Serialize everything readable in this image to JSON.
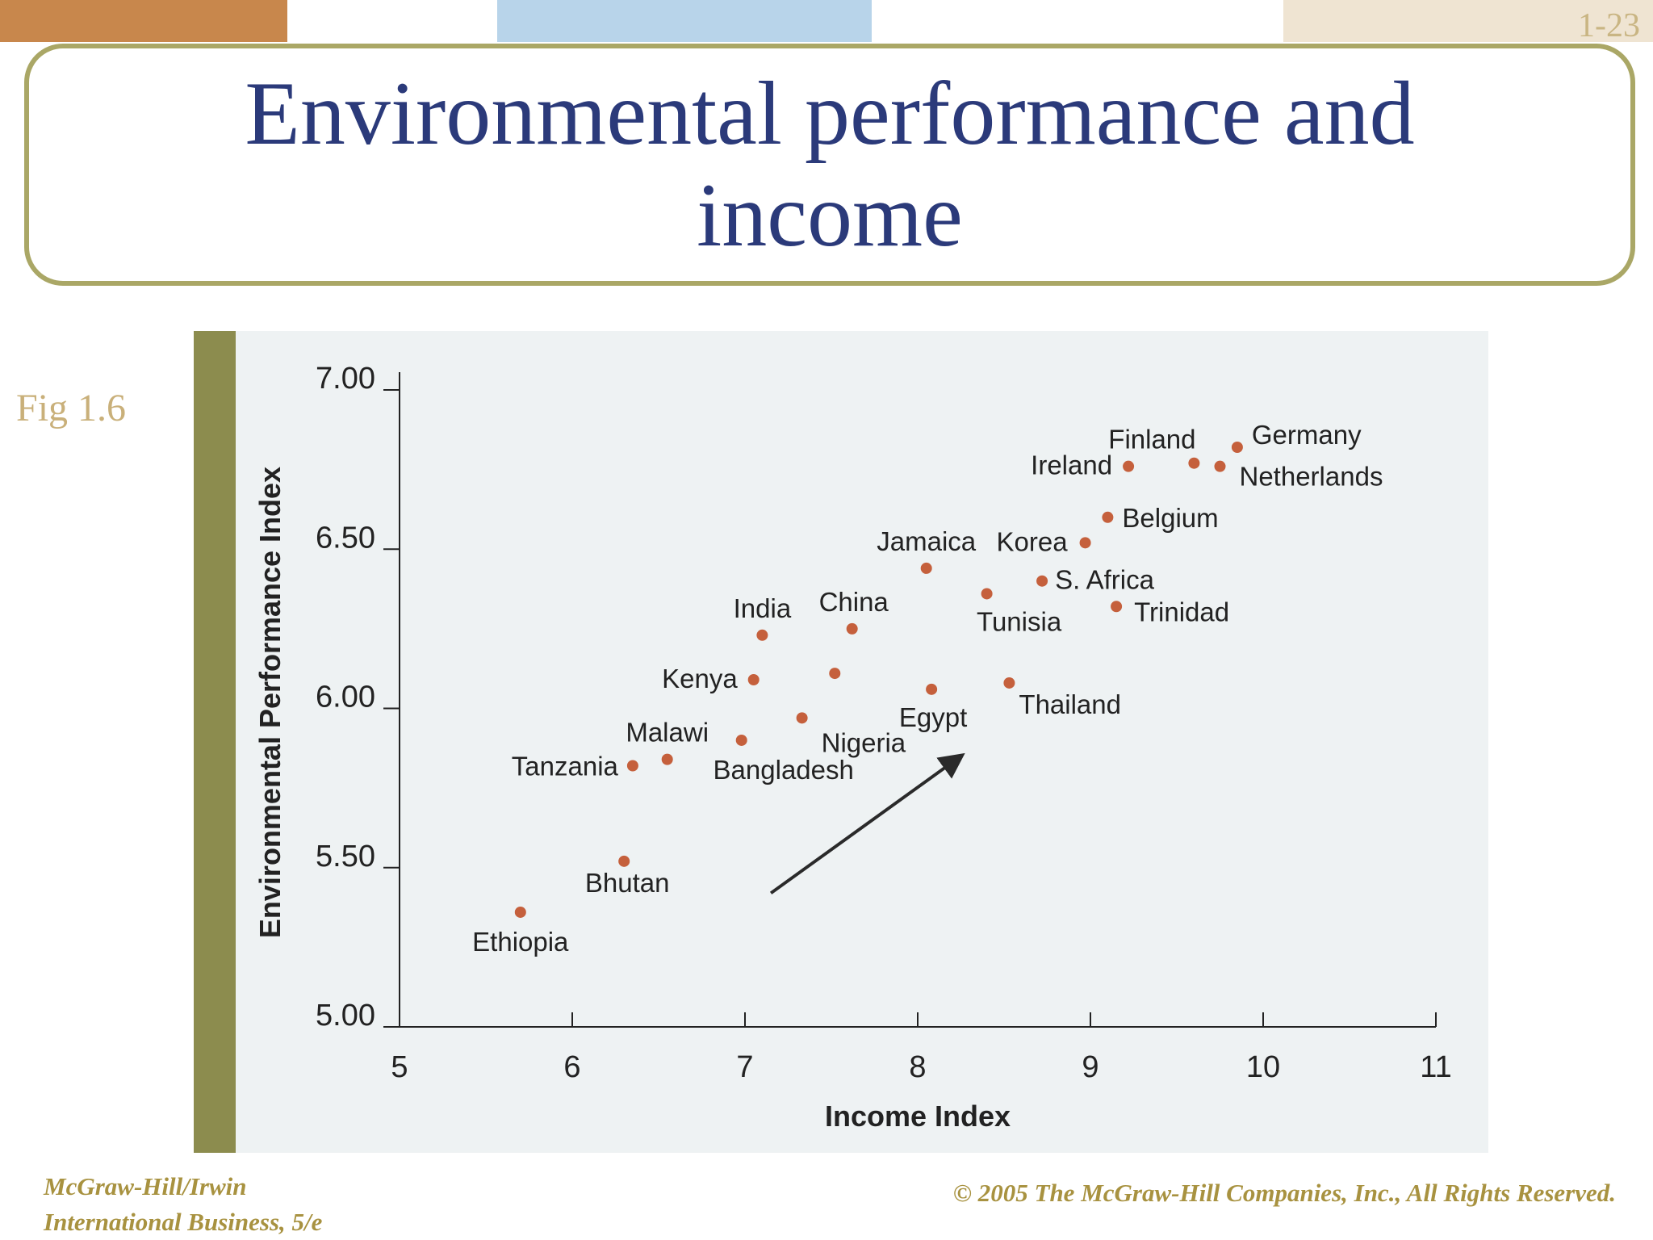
{
  "slide": {
    "number": "1-23",
    "title": "Environmental performance and income",
    "figure_label": "Fig 1.6",
    "footer_left_line1": "McGraw-Hill/Irwin",
    "footer_left_line2": "International Business, 5/e",
    "footer_right": "© 2005 The McGraw-Hill Companies, Inc., All Rights Reserved.",
    "colors": {
      "title": "#2b3a7a",
      "accent_border": "#aaa766",
      "stripe": "#8c8c4e",
      "footer": "#a89240",
      "point": "#c5603c",
      "topbar": [
        "#c8874c",
        "#ffffff",
        "#b8d4ea",
        "#ffffff",
        "#efe4d2"
      ]
    }
  },
  "chart_data": {
    "type": "scatter",
    "xlabel": "Income Index",
    "ylabel": "Environmental Performance Index",
    "xlim": [
      5,
      11
    ],
    "ylim": [
      5.0,
      7.0
    ],
    "x_ticks": [
      "5",
      "6",
      "7",
      "8",
      "9",
      "10",
      "11"
    ],
    "y_ticks": [
      "5.00",
      "5.50",
      "6.00",
      "6.50",
      "7.00"
    ],
    "grid": false,
    "points": [
      {
        "label": "Ethiopia",
        "x": 5.7,
        "y": 5.36
      },
      {
        "label": "Bhutan",
        "x": 6.3,
        "y": 5.52
      },
      {
        "label": "Tanzania",
        "x": 6.35,
        "y": 5.82
      },
      {
        "label": "Malawi",
        "x": 6.55,
        "y": 5.84
      },
      {
        "label": "Bangladesh",
        "x": 6.98,
        "y": 5.9
      },
      {
        "label": "Kenya",
        "x": 7.05,
        "y": 6.09
      },
      {
        "label": "India",
        "x": 7.1,
        "y": 6.23
      },
      {
        "label": "Nigeria",
        "x": 7.33,
        "y": 5.97
      },
      {
        "label": "China",
        "x": 7.62,
        "y": 6.25
      },
      {
        "label": "",
        "x": 7.52,
        "y": 6.11
      },
      {
        "label": "Jamaica",
        "x": 8.05,
        "y": 6.44
      },
      {
        "label": "Egypt",
        "x": 8.08,
        "y": 6.06
      },
      {
        "label": "Tunisia",
        "x": 8.4,
        "y": 6.36
      },
      {
        "label": "Thailand",
        "x": 8.53,
        "y": 6.08
      },
      {
        "label": "S. Africa",
        "x": 8.72,
        "y": 6.4
      },
      {
        "label": "Korea",
        "x": 8.97,
        "y": 6.52
      },
      {
        "label": "Belgium",
        "x": 9.1,
        "y": 6.6
      },
      {
        "label": "Trinidad",
        "x": 9.15,
        "y": 6.32
      },
      {
        "label": "Ireland",
        "x": 9.22,
        "y": 6.76
      },
      {
        "label": "Finland",
        "x": 9.6,
        "y": 6.77
      },
      {
        "label": "Netherlands",
        "x": 9.75,
        "y": 6.76
      },
      {
        "label": "Germany",
        "x": 9.85,
        "y": 6.82
      }
    ],
    "trend_arrow": {
      "from": [
        7.15,
        5.42
      ],
      "to": [
        8.25,
        5.85
      ]
    }
  }
}
